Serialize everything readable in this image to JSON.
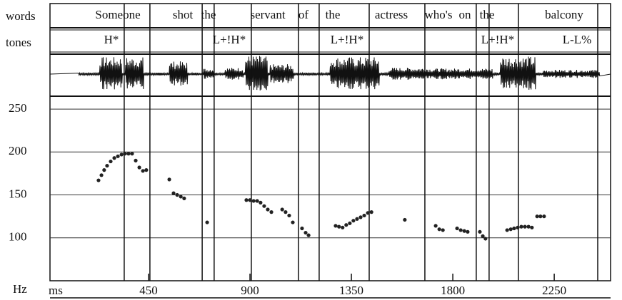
{
  "chart_data": {
    "type": "scatter",
    "tier_labels": [
      "words",
      "tones"
    ],
    "words": [
      "Someone",
      "shot",
      "the",
      "servant",
      "of",
      "the",
      "actress",
      "who's",
      "on",
      "the",
      "balcony"
    ],
    "tones": [
      "H*",
      "L+!H*",
      "L+!H*",
      "L+!H*",
      "L-L%"
    ],
    "x_label": "ms",
    "y_label": "Hz",
    "xlim": [
      0,
      2500
    ],
    "xticks": [
      450,
      900,
      1350,
      1800,
      2250
    ],
    "ylim": [
      50,
      265
    ],
    "yticks": [
      100,
      150,
      200,
      250
    ],
    "grid": true,
    "color": "#222222",
    "boundaries": [
      342,
      456,
      688,
      741,
      906,
      1115,
      1207,
      1429,
      1676,
      1904,
      1961,
      2091,
      2443
    ],
    "x": [
      228,
      241,
      253,
      266,
      282,
      298,
      314,
      330,
      345,
      361,
      377,
      393,
      409,
      425,
      440,
      542,
      561,
      577,
      593,
      608,
      710,
      884,
      900,
      916,
      932,
      947,
      963,
      979,
      995,
      1043,
      1058,
      1074,
      1090,
      1131,
      1147,
      1160,
      1280,
      1295,
      1311,
      1327,
      1343,
      1359,
      1375,
      1391,
      1407,
      1423,
      1439,
      1587,
      1724,
      1740,
      1756,
      1819,
      1835,
      1851,
      1866,
      1920,
      1933,
      1945,
      2041,
      2057,
      2072,
      2088,
      2104,
      2120,
      2136,
      2151,
      2174,
      2189,
      2205
    ],
    "values": [
      167,
      173,
      179,
      184,
      189,
      193,
      195,
      197,
      198,
      198,
      198,
      190,
      182,
      178,
      179,
      168,
      152,
      150,
      148,
      146,
      118,
      144,
      144,
      143,
      143,
      141,
      137,
      133,
      130,
      133,
      130,
      126,
      118,
      111,
      106,
      103,
      114,
      113,
      112,
      115,
      117,
      120,
      122,
      124,
      126,
      129,
      130,
      121,
      114,
      110,
      109,
      111,
      109,
      108,
      107,
      107,
      102,
      99,
      109,
      110,
      111,
      112,
      113,
      113,
      113,
      112,
      125,
      125,
      125
    ]
  }
}
